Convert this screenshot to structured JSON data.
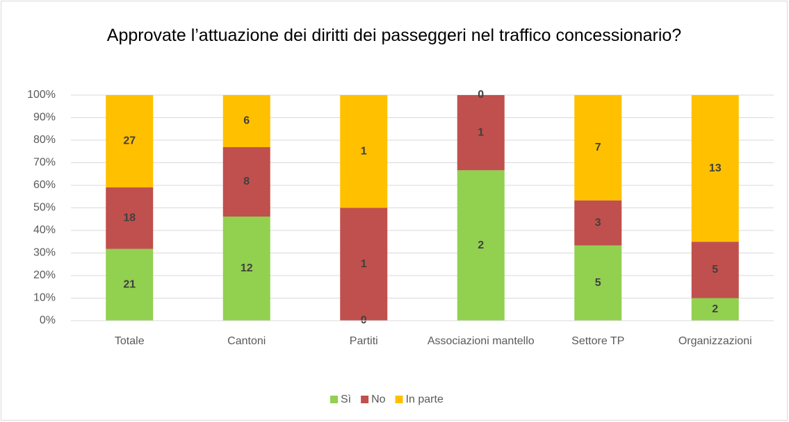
{
  "chart_data": {
    "type": "bar",
    "stacked": "percent",
    "title": "Approvate l’attuazione dei diritti dei passeggeri nel traffico concessionario?",
    "categories": [
      "Totale",
      "Cantoni",
      "Partiti",
      "Associazioni mantello",
      "Settore TP",
      "Organizzazioni"
    ],
    "series": [
      {
        "name": "Sì",
        "color": "#92d050",
        "values": [
          21,
          12,
          0,
          2,
          5,
          2
        ]
      },
      {
        "name": "No",
        "color": "#c0504d",
        "values": [
          18,
          8,
          1,
          1,
          3,
          5
        ]
      },
      {
        "name": "In parte",
        "color": "#ffc000",
        "values": [
          27,
          6,
          1,
          0,
          7,
          13
        ]
      }
    ],
    "ylim": [
      0,
      100
    ],
    "yticks": [
      {
        "value": 0,
        "label": "0%"
      },
      {
        "value": 10,
        "label": "10%"
      },
      {
        "value": 20,
        "label": "20%"
      },
      {
        "value": 30,
        "label": "30%"
      },
      {
        "value": 40,
        "label": "40%"
      },
      {
        "value": 50,
        "label": "50%"
      },
      {
        "value": 60,
        "label": "60%"
      },
      {
        "value": 70,
        "label": "70%"
      },
      {
        "value": 80,
        "label": "80%"
      },
      {
        "value": 90,
        "label": "90%"
      },
      {
        "value": 100,
        "label": "100%"
      }
    ],
    "grid": true,
    "legend": "bottom"
  }
}
